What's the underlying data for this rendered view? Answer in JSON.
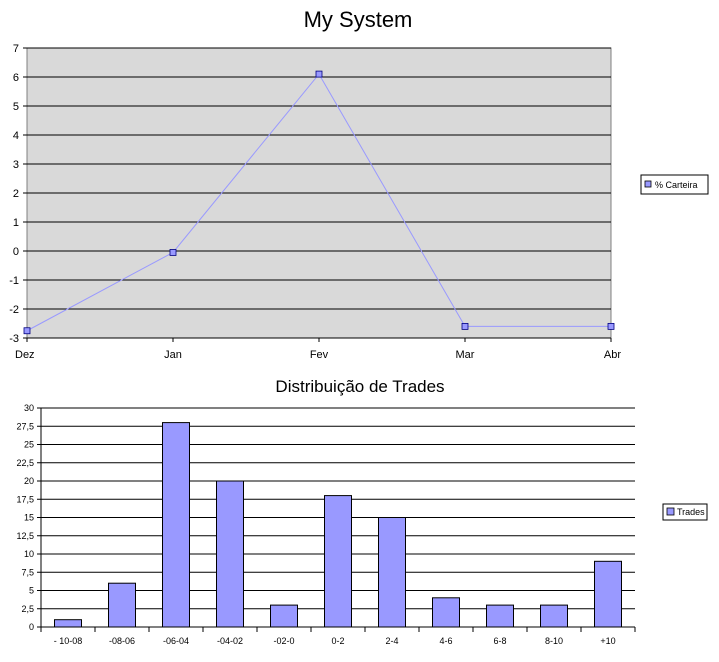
{
  "chart_data": [
    {
      "type": "line",
      "title": "My System",
      "categories": [
        "Dez",
        "Jan",
        "Fev",
        "Mar",
        "Abr"
      ],
      "series": [
        {
          "name": "% Carteira",
          "values": [
            -2.75,
            -0.05,
            6.1,
            -2.6,
            -2.6
          ]
        }
      ],
      "ylim": [
        -3,
        7
      ],
      "yticks": [
        "7",
        "6",
        "5",
        "4",
        "3",
        "2",
        "1",
        "0",
        "-1",
        "-2",
        "-3"
      ],
      "grid": true,
      "legend": "right",
      "colors": {
        "plot_bg": "#d9d9d9",
        "line": "#9999ff",
        "marker": "#9999ff"
      }
    },
    {
      "type": "bar",
      "title": "Distribuição de Trades",
      "categories": [
        "- 10-08",
        "-08-06",
        "-06-04",
        "-04-02",
        "-02-0",
        "0-2",
        "2-4",
        "4-6",
        "6-8",
        "8-10",
        "+10"
      ],
      "series": [
        {
          "name": "Trades",
          "values": [
            1,
            6,
            28,
            20,
            3,
            18,
            15,
            4,
            3,
            3,
            9
          ]
        }
      ],
      "ylim": [
        0,
        30
      ],
      "yticks": [
        "30",
        "27,5",
        "25",
        "22,5",
        "20",
        "17,5",
        "15",
        "12,5",
        "10",
        "7,5",
        "5",
        "2,5",
        "0"
      ],
      "grid": true,
      "legend": "right",
      "colors": {
        "bar": "#9999ff",
        "bar_stroke": "#000000"
      }
    }
  ]
}
